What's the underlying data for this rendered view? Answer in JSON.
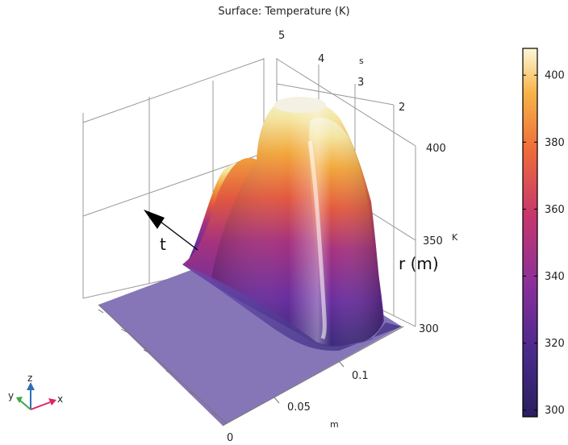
{
  "chart_data": {
    "type": "surface3d",
    "title": "Surface: Temperature (K)",
    "quantity": "Temperature",
    "unit": "K",
    "x_axis": {
      "unit": "m",
      "ticks": [
        "0",
        "0.05",
        "0.1"
      ]
    },
    "y_axis": {
      "unit": "s",
      "ticks": [
        "2",
        "3",
        "4",
        "5"
      ]
    },
    "z_axis": {
      "unit": "K",
      "ticks": [
        "300",
        "350",
        "400"
      ]
    },
    "zlim": [
      300,
      410
    ],
    "colorbar": {
      "range": [
        298,
        408
      ],
      "ticks": [
        "300",
        "320",
        "340",
        "360",
        "380",
        "400"
      ],
      "colormap": "plasma"
    },
    "annotations": [
      {
        "text": "t"
      },
      {
        "text": "r (m)"
      }
    ],
    "triad": {
      "x": "x",
      "y": "y",
      "z": "z"
    },
    "colors": {
      "base_plane": "#8676b8",
      "axis_x": "#e0245e",
      "axis_y": "#3aa845",
      "axis_z": "#2d6fb5"
    }
  }
}
